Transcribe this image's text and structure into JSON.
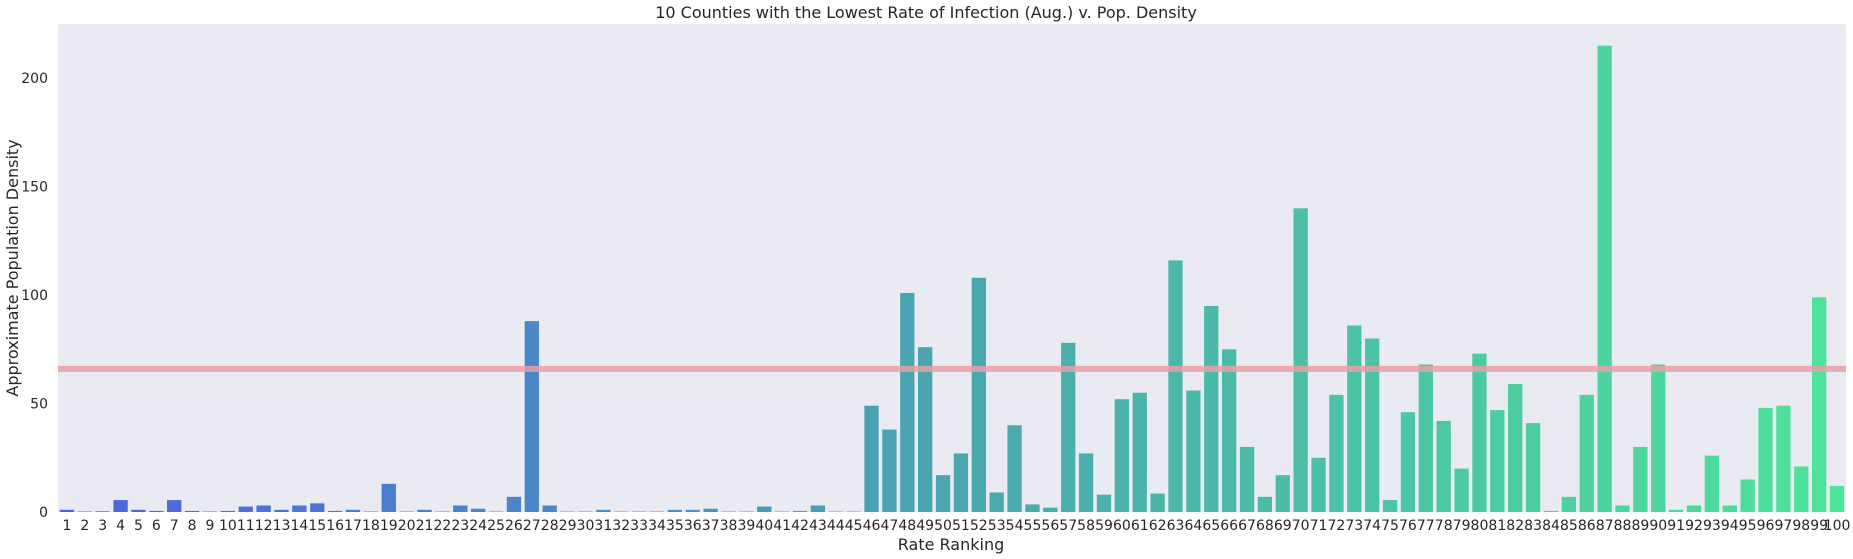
{
  "chart_data": {
    "type": "bar",
    "title": "10 Counties with the Lowest Rate of Infection (Aug.) v. Pop. Density",
    "xlabel": "Rate Ranking",
    "ylabel": "Approximate Population Density",
    "ylim": [
      0,
      225
    ],
    "yticks": [
      0,
      50,
      100,
      150,
      200
    ],
    "grid": false,
    "background": "#eaeaf2",
    "reference_line": {
      "value": 66,
      "color": "#e8a0a8"
    },
    "palette": {
      "start": "#4c64e3",
      "mid": "#4aa7ae",
      "end": "#4ee39a"
    },
    "categories": [
      "1",
      "2",
      "3",
      "4",
      "5",
      "6",
      "7",
      "8",
      "9",
      "10",
      "11",
      "12",
      "13",
      "14",
      "15",
      "16",
      "17",
      "18",
      "19",
      "20",
      "21",
      "22",
      "23",
      "24",
      "25",
      "26",
      "27",
      "28",
      "29",
      "30",
      "31",
      "32",
      "33",
      "34",
      "35",
      "36",
      "37",
      "38",
      "39",
      "40",
      "41",
      "42",
      "43",
      "44",
      "45",
      "46",
      "47",
      "48",
      "49",
      "50",
      "51",
      "52",
      "53",
      "54",
      "55",
      "56",
      "57",
      "58",
      "59",
      "60",
      "61",
      "62",
      "63",
      "64",
      "65",
      "66",
      "67",
      "68",
      "69",
      "70",
      "71",
      "72",
      "73",
      "74",
      "75",
      "76",
      "77",
      "78",
      "79",
      "80",
      "81",
      "82",
      "83",
      "84",
      "85",
      "86",
      "87",
      "88",
      "89",
      "90",
      "91",
      "92",
      "93",
      "94",
      "95",
      "96",
      "97",
      "98",
      "99",
      "100"
    ],
    "values": [
      1.0,
      0.2,
      0.3,
      5.5,
      1.0,
      0.5,
      5.5,
      0.5,
      0.2,
      0.5,
      2.5,
      3.0,
      1.0,
      3.0,
      4.0,
      0.5,
      1.0,
      0.2,
      13.0,
      0.2,
      1.0,
      0.2,
      3.0,
      1.5,
      0.2,
      7.0,
      88.0,
      3.0,
      0.2,
      0.2,
      1.0,
      0.2,
      0.2,
      0.2,
      1.0,
      1.0,
      1.5,
      0.2,
      0.2,
      2.5,
      0.2,
      0.5,
      3.0,
      0.2,
      0.2,
      49.0,
      38.0,
      101.0,
      76.0,
      17.0,
      27.0,
      108.0,
      9.0,
      40.0,
      3.5,
      2.0,
      78.0,
      27.0,
      8.0,
      52.0,
      55.0,
      8.5,
      116.0,
      56.0,
      95.0,
      75.0,
      30.0,
      7.0,
      17.0,
      140.0,
      25.0,
      54.0,
      86.0,
      80.0,
      5.5,
      46.0,
      68.0,
      42.0,
      20.0,
      73.0,
      47.0,
      59.0,
      41.0,
      0.5,
      7.0,
      54.0,
      215.0,
      3.0,
      30.0,
      68.0,
      1.0,
      3.0,
      26.0,
      3.0,
      15.0,
      48.0,
      49.0,
      21.0,
      99.0,
      12.0
    ]
  }
}
